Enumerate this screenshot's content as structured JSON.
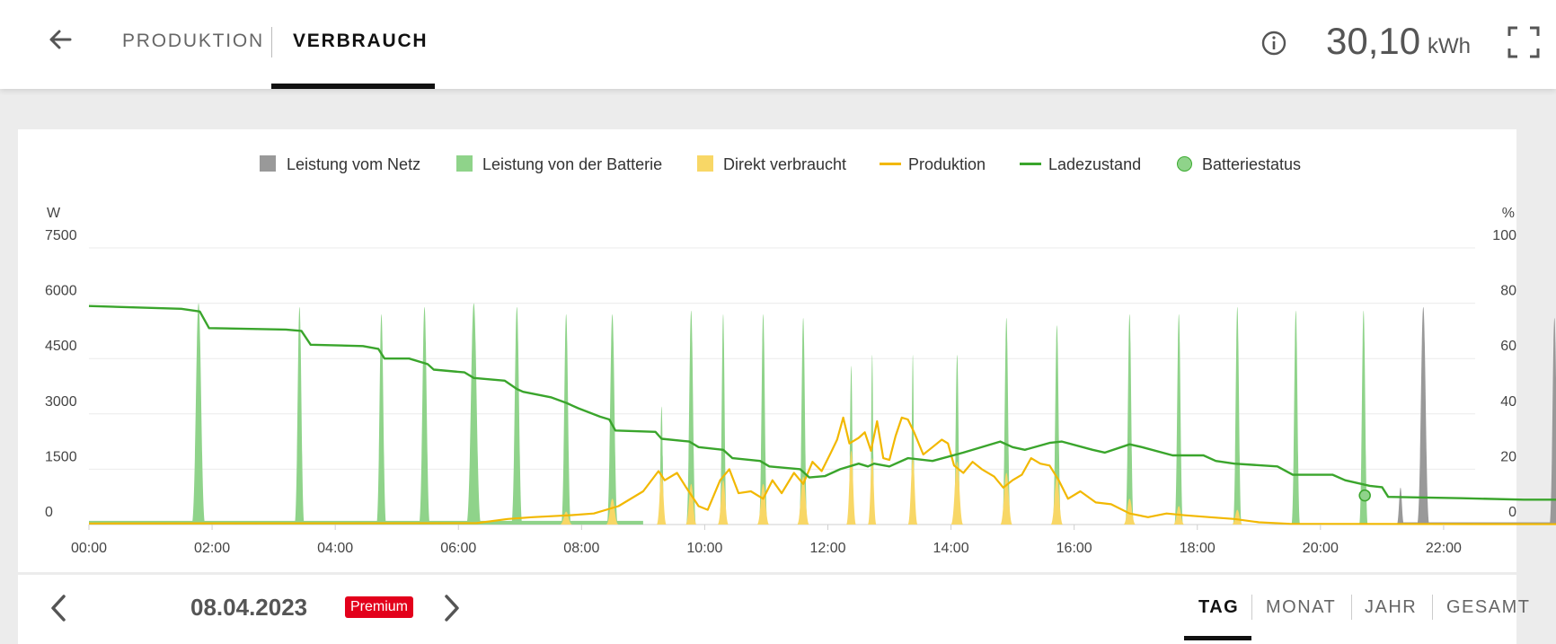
{
  "header": {
    "tabs": [
      {
        "label": "PRODUKTION",
        "active": false
      },
      {
        "label": "VERBRAUCH",
        "active": true
      }
    ],
    "total_value": "30,10",
    "total_unit": "kWh"
  },
  "footer": {
    "date": "08.04.2023",
    "badge": "Premium",
    "periods": [
      "TAG",
      "MONAT",
      "JAHR",
      "GESAMT"
    ],
    "active_period": "TAG"
  },
  "chart_data": {
    "type": "area",
    "legend": [
      {
        "name": "Leistung vom Netz",
        "kind": "box",
        "color": "#999999"
      },
      {
        "name": "Leistung von der Batterie",
        "kind": "box",
        "color": "#8fd38a"
      },
      {
        "name": "Direkt verbraucht",
        "kind": "box",
        "color": "#f8d766"
      },
      {
        "name": "Produktion",
        "kind": "line",
        "color": "#f2b800"
      },
      {
        "name": "Ladezustand",
        "kind": "line",
        "color": "#3aa52c"
      },
      {
        "name": "Batteriestatus",
        "kind": "dot",
        "color": "#8fd38a"
      }
    ],
    "legend_placement": "top-center",
    "y_left": {
      "unit": "W",
      "min": 0,
      "max": 7500,
      "ticks": [
        "0",
        "1500",
        "3000",
        "4500",
        "6000",
        "7500"
      ]
    },
    "y_right": {
      "unit": "%",
      "min": 0,
      "max": 100,
      "ticks": [
        "0",
        "20",
        "40",
        "60",
        "80",
        "100"
      ]
    },
    "x_ticks": [
      "00:00",
      "02:00",
      "04:00",
      "06:00",
      "08:00",
      "10:00",
      "12:00",
      "14:00",
      "16:00",
      "18:00",
      "20:00",
      "22:00"
    ],
    "x_range_hours": [
      0,
      24
    ],
    "grid": true,
    "series": [
      {
        "name": "Leistung von der Batterie",
        "kind": "peaks",
        "color": "#8fd38a",
        "peaks": [
          {
            "t": 1.78,
            "peak": 6000,
            "w": 0.11
          },
          {
            "t": 3.42,
            "peak": 5900,
            "w": 0.08
          },
          {
            "t": 4.75,
            "peak": 5700,
            "w": 0.08
          },
          {
            "t": 5.45,
            "peak": 5900,
            "w": 0.09
          },
          {
            "t": 6.25,
            "peak": 6000,
            "w": 0.12
          },
          {
            "t": 6.95,
            "peak": 5900,
            "w": 0.09
          },
          {
            "t": 7.75,
            "peak": 5700,
            "w": 0.08
          },
          {
            "t": 8.5,
            "peak": 5700,
            "w": 0.09
          },
          {
            "t": 9.3,
            "peak": 3200,
            "w": 0.05
          },
          {
            "t": 9.78,
            "peak": 5800,
            "w": 0.08
          },
          {
            "t": 10.3,
            "peak": 5700,
            "w": 0.06
          },
          {
            "t": 10.95,
            "peak": 5700,
            "w": 0.07
          },
          {
            "t": 11.6,
            "peak": 5600,
            "w": 0.07
          },
          {
            "t": 12.38,
            "peak": 4300,
            "w": 0.05
          },
          {
            "t": 12.72,
            "peak": 4600,
            "w": 0.04
          },
          {
            "t": 13.38,
            "peak": 4600,
            "w": 0.04
          },
          {
            "t": 14.1,
            "peak": 4600,
            "w": 0.06
          },
          {
            "t": 14.9,
            "peak": 5600,
            "w": 0.07
          },
          {
            "t": 15.72,
            "peak": 5400,
            "w": 0.07
          },
          {
            "t": 16.9,
            "peak": 5700,
            "w": 0.07
          },
          {
            "t": 17.7,
            "peak": 5700,
            "w": 0.07
          },
          {
            "t": 18.65,
            "peak": 5900,
            "w": 0.07
          },
          {
            "t": 19.6,
            "peak": 5800,
            "w": 0.07
          },
          {
            "t": 20.7,
            "peak": 5800,
            "w": 0.07
          }
        ]
      },
      {
        "name": "Leistung vom Netz",
        "kind": "peaks",
        "color": "#999999",
        "peaks": [
          {
            "t": 21.3,
            "peak": 1000,
            "w": 0.06
          },
          {
            "t": 21.67,
            "peak": 5900,
            "w": 0.1
          },
          {
            "t": 23.8,
            "peak": 5600,
            "w": 0.08
          }
        ]
      },
      {
        "name": "Direkt verbraucht",
        "kind": "peaks",
        "color": "#f8d766",
        "peaks": [
          {
            "t": 7.75,
            "peak": 350,
            "w": 0.1
          },
          {
            "t": 8.5,
            "peak": 700,
            "w": 0.1
          },
          {
            "t": 9.3,
            "peak": 1400,
            "w": 0.08
          },
          {
            "t": 9.78,
            "peak": 1100,
            "w": 0.09
          },
          {
            "t": 10.3,
            "peak": 1200,
            "w": 0.09
          },
          {
            "t": 10.95,
            "peak": 1100,
            "w": 0.1
          },
          {
            "t": 11.6,
            "peak": 1300,
            "w": 0.1
          },
          {
            "t": 12.38,
            "peak": 2000,
            "w": 0.08
          },
          {
            "t": 12.72,
            "peak": 1800,
            "w": 0.07
          },
          {
            "t": 13.38,
            "peak": 1800,
            "w": 0.08
          },
          {
            "t": 14.1,
            "peak": 1700,
            "w": 0.1
          },
          {
            "t": 14.9,
            "peak": 1400,
            "w": 0.1
          },
          {
            "t": 15.72,
            "peak": 1300,
            "w": 0.1
          },
          {
            "t": 16.9,
            "peak": 700,
            "w": 0.1
          },
          {
            "t": 17.7,
            "peak": 500,
            "w": 0.09
          },
          {
            "t": 18.65,
            "peak": 400,
            "w": 0.09
          }
        ]
      },
      {
        "name": "Produktion",
        "kind": "line",
        "color": "#f2b800",
        "points": [
          [
            0,
            30
          ],
          [
            6.3,
            40
          ],
          [
            6.8,
            150
          ],
          [
            7.2,
            200
          ],
          [
            7.8,
            250
          ],
          [
            8.2,
            300
          ],
          [
            8.6,
            500
          ],
          [
            9.0,
            900
          ],
          [
            9.25,
            1450
          ],
          [
            9.35,
            1200
          ],
          [
            9.55,
            1400
          ],
          [
            9.7,
            1000
          ],
          [
            9.9,
            500
          ],
          [
            10.05,
            400
          ],
          [
            10.25,
            1200
          ],
          [
            10.4,
            1500
          ],
          [
            10.55,
            850
          ],
          [
            10.75,
            900
          ],
          [
            10.95,
            700
          ],
          [
            11.1,
            1200
          ],
          [
            11.25,
            850
          ],
          [
            11.45,
            1400
          ],
          [
            11.6,
            1100
          ],
          [
            11.75,
            1700
          ],
          [
            11.9,
            1450
          ],
          [
            12.05,
            1950
          ],
          [
            12.15,
            2300
          ],
          [
            12.25,
            2900
          ],
          [
            12.35,
            2200
          ],
          [
            12.5,
            2350
          ],
          [
            12.6,
            2500
          ],
          [
            12.7,
            2000
          ],
          [
            12.8,
            2800
          ],
          [
            12.9,
            1800
          ],
          [
            13.0,
            1750
          ],
          [
            13.1,
            2400
          ],
          [
            13.2,
            2900
          ],
          [
            13.3,
            2850
          ],
          [
            13.4,
            2500
          ],
          [
            13.55,
            1900
          ],
          [
            13.7,
            2100
          ],
          [
            13.85,
            2300
          ],
          [
            13.95,
            2200
          ],
          [
            14.05,
            1600
          ],
          [
            14.2,
            1400
          ],
          [
            14.35,
            1700
          ],
          [
            14.5,
            1500
          ],
          [
            14.7,
            1300
          ],
          [
            14.85,
            1000
          ],
          [
            15.0,
            1200
          ],
          [
            15.15,
            1350
          ],
          [
            15.3,
            1800
          ],
          [
            15.45,
            1650
          ],
          [
            15.6,
            1600
          ],
          [
            15.75,
            1200
          ],
          [
            15.9,
            700
          ],
          [
            16.1,
            900
          ],
          [
            16.35,
            600
          ],
          [
            16.6,
            550
          ],
          [
            16.9,
            300
          ],
          [
            17.2,
            200
          ],
          [
            17.5,
            300
          ],
          [
            17.8,
            250
          ],
          [
            18.2,
            200
          ],
          [
            18.6,
            150
          ],
          [
            19.0,
            60
          ],
          [
            19.5,
            20
          ],
          [
            24,
            10
          ]
        ]
      },
      {
        "name": "Ladezustand",
        "kind": "line",
        "axis": "right",
        "color": "#3aa52c",
        "points": [
          [
            0,
            79
          ],
          [
            1.5,
            78
          ],
          [
            1.8,
            77
          ],
          [
            1.95,
            71
          ],
          [
            3.2,
            70.5
          ],
          [
            3.45,
            70
          ],
          [
            3.6,
            65
          ],
          [
            4.45,
            64.5
          ],
          [
            4.7,
            63.5
          ],
          [
            4.8,
            60
          ],
          [
            5.2,
            60
          ],
          [
            5.5,
            58
          ],
          [
            5.6,
            56
          ],
          [
            6.1,
            55
          ],
          [
            6.25,
            53
          ],
          [
            6.75,
            52
          ],
          [
            6.95,
            49
          ],
          [
            7.05,
            48
          ],
          [
            7.5,
            46
          ],
          [
            7.75,
            44
          ],
          [
            7.95,
            42
          ],
          [
            8.3,
            39
          ],
          [
            8.45,
            38
          ],
          [
            8.55,
            34
          ],
          [
            9.2,
            33.5
          ],
          [
            9.3,
            31
          ],
          [
            9.75,
            30
          ],
          [
            9.9,
            28
          ],
          [
            10.3,
            27
          ],
          [
            10.45,
            24
          ],
          [
            10.9,
            23
          ],
          [
            11.05,
            21
          ],
          [
            11.55,
            20
          ],
          [
            11.7,
            17
          ],
          [
            11.95,
            17.5
          ],
          [
            12.2,
            20
          ],
          [
            12.5,
            22
          ],
          [
            12.65,
            21
          ],
          [
            12.75,
            22
          ],
          [
            13.0,
            21
          ],
          [
            13.3,
            24
          ],
          [
            13.7,
            23
          ],
          [
            14.2,
            26
          ],
          [
            14.8,
            30
          ],
          [
            15.0,
            28
          ],
          [
            15.2,
            27
          ],
          [
            15.6,
            29.5
          ],
          [
            15.8,
            30
          ],
          [
            16.3,
            27
          ],
          [
            16.5,
            26
          ],
          [
            16.9,
            29
          ],
          [
            17.1,
            28
          ],
          [
            17.6,
            25
          ],
          [
            18.1,
            25
          ],
          [
            18.3,
            23
          ],
          [
            18.6,
            22
          ],
          [
            19.3,
            21
          ],
          [
            19.55,
            18
          ],
          [
            20.2,
            18
          ],
          [
            20.4,
            16
          ],
          [
            20.8,
            14
          ],
          [
            21.0,
            13.5
          ],
          [
            21.1,
            10
          ],
          [
            22.3,
            9.5
          ],
          [
            23.3,
            9
          ],
          [
            23.85,
            9
          ]
        ]
      }
    ],
    "battery_status_marker": {
      "t": 20.72,
      "value": 10.5
    }
  }
}
